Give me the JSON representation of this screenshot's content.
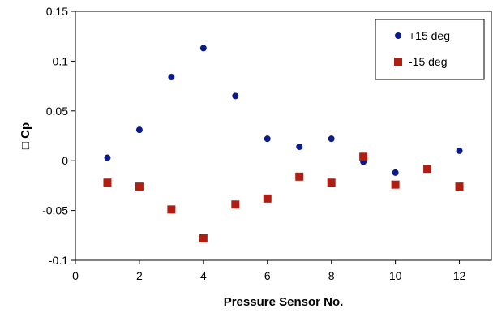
{
  "chart_data": {
    "type": "scatter",
    "xlabel": "Pressure Sensor No.",
    "ylabel": "□ Cp",
    "xlim": [
      0,
      13
    ],
    "ylim": [
      -0.1,
      0.15
    ],
    "xticks": [
      0,
      2,
      4,
      6,
      8,
      10,
      12
    ],
    "yticks": [
      -0.1,
      -0.05,
      0,
      0.05,
      0.1,
      0.15
    ],
    "xtick_labels": [
      "0",
      "2",
      "4",
      "6",
      "8",
      "10",
      "12"
    ],
    "ytick_labels": [
      "-0.1",
      "-0.05",
      "0",
      "0.05",
      "0.1",
      "0.15"
    ],
    "legend_position": "top-right",
    "series": [
      {
        "name": "+15 deg",
        "marker": "circle",
        "color": "#0a1a8c",
        "x": [
          1,
          2,
          3,
          4,
          5,
          6,
          7,
          8,
          9,
          10,
          12
        ],
        "y": [
          0.003,
          0.031,
          0.084,
          0.113,
          0.065,
          0.022,
          0.014,
          0.022,
          -0.001,
          -0.012,
          0.01
        ]
      },
      {
        "name": "-15 deg",
        "marker": "square",
        "color": "#b01e12",
        "x": [
          1,
          2,
          3,
          4,
          5,
          6,
          7,
          8,
          9,
          10,
          11,
          12
        ],
        "y": [
          -0.022,
          -0.026,
          -0.049,
          -0.078,
          -0.044,
          -0.038,
          -0.016,
          -0.022,
          0.004,
          -0.024,
          -0.008,
          -0.026
        ]
      }
    ]
  }
}
